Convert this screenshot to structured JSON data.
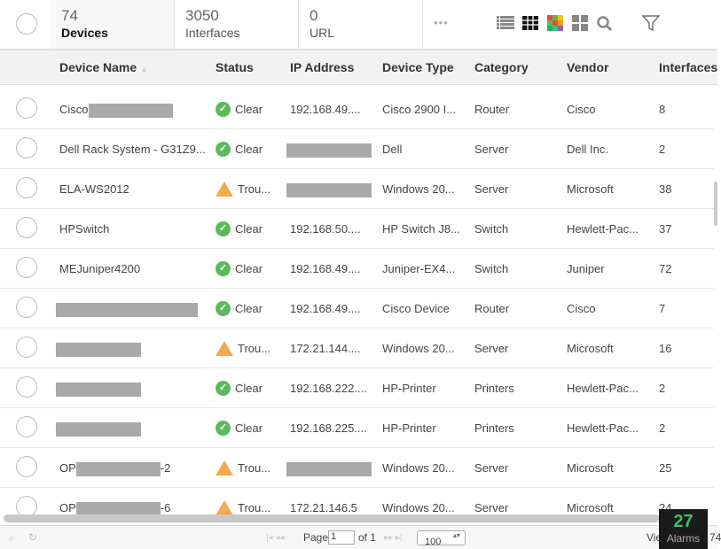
{
  "tabs": [
    {
      "count": "74",
      "label": "Devices",
      "active": true
    },
    {
      "count": "3050",
      "label": "Interfaces"
    },
    {
      "count": "0",
      "label": "URL"
    }
  ],
  "more_label": "•••",
  "toolbar_icons": [
    "list-view-icon",
    "grid-view-icon",
    "heatmap-view-icon",
    "tile-view-icon",
    "search-icon",
    "filter-icon"
  ],
  "columns": [
    "Device Name",
    "Status",
    "IP Address",
    "Device Type",
    "Category",
    "Vendor",
    "Interfaces"
  ],
  "colors": {
    "clear": "#5cb85c",
    "trouble": "#f4a94e",
    "alarms": "#3fbf6a"
  },
  "rows": [
    {
      "name": "Cisco",
      "name_redacted": true,
      "name_suffix": "",
      "status": "Clear",
      "ip": "192.168.49....",
      "type": "Cisco 2900 I...",
      "category": "Router",
      "vendor": "Cisco",
      "interfaces": "8"
    },
    {
      "name": "Dell Rack System - G31Z9...",
      "status": "Clear",
      "ip": "",
      "ip_redacted": true,
      "type": "Dell",
      "category": "Server",
      "vendor": "Dell Inc.",
      "interfaces": "2"
    },
    {
      "name": "ELA-WS2012",
      "status": "Trou...",
      "ip": "",
      "ip_redacted": true,
      "type": "Windows 20...",
      "category": "Server",
      "vendor": "Microsoft",
      "interfaces": "38"
    },
    {
      "name": "HPSwitch",
      "status": "Clear",
      "ip": "192.168.50....",
      "type": "HP Switch J8...",
      "category": "Switch",
      "vendor": "Hewlett-Pac...",
      "interfaces": "37"
    },
    {
      "name": "MEJuniper4200",
      "status": "Clear",
      "ip": "192.168.49....",
      "type": "Juniper-EX4...",
      "category": "Switch",
      "vendor": "Juniper",
      "interfaces": "72"
    },
    {
      "name": "",
      "name_redacted": true,
      "status": "Clear",
      "ip": "192.168.49....",
      "type": "Cisco Device",
      "category": "Router",
      "vendor": "Cisco",
      "interfaces": "7"
    },
    {
      "name": "",
      "name_redacted": true,
      "status": "Trou...",
      "ip": "172.21.144....",
      "type": "Windows 20...",
      "category": "Server",
      "vendor": "Microsoft",
      "interfaces": "16"
    },
    {
      "name": "",
      "name_redacted": true,
      "status": "Clear",
      "ip": "192.168.222....",
      "type": "HP-Printer",
      "category": "Printers",
      "vendor": "Hewlett-Pac...",
      "interfaces": "2"
    },
    {
      "name": "",
      "name_redacted": true,
      "status": "Clear",
      "ip": "192.168.225....",
      "type": "HP-Printer",
      "category": "Printers",
      "vendor": "Hewlett-Pac...",
      "interfaces": "2"
    },
    {
      "name": "OP",
      "name_redacted": true,
      "name_suffix": "-2",
      "status": "Trou...",
      "ip": "",
      "ip_redacted": true,
      "type": "Windows 20...",
      "category": "Server",
      "vendor": "Microsoft",
      "interfaces": "25"
    },
    {
      "name": "OP",
      "name_redacted": true,
      "name_suffix": "-6",
      "status": "Trou...",
      "ip": "172.21.146.5",
      "type": "Windows 20...",
      "category": "Server",
      "vendor": "Microsoft",
      "interfaces": "24"
    }
  ],
  "pager": {
    "page_label": "Page",
    "page": "1",
    "of_label": "of 1",
    "page_size": "100",
    "view_label": "Vie",
    "view_count": "74"
  },
  "alarms": {
    "count": "27",
    "label": "Alarms"
  }
}
